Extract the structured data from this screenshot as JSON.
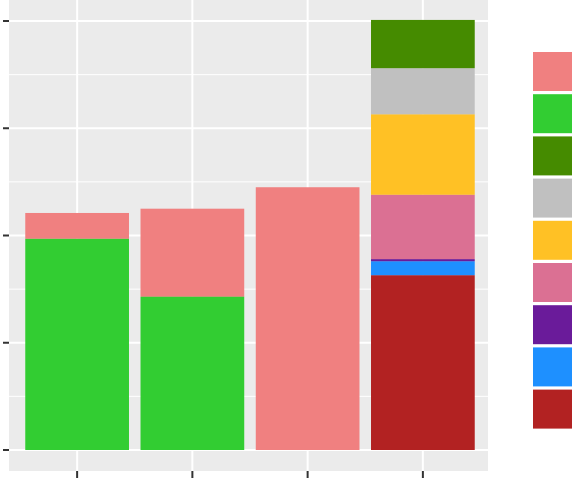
{
  "chart_data": {
    "type": "bar",
    "stacked": true,
    "title": "",
    "xlabel": "",
    "ylabel": "",
    "categories": [
      "",
      "",
      "",
      ""
    ],
    "ylim": [
      0,
      4
    ],
    "grid": true,
    "legend_position": "right",
    "series": [
      {
        "color": "#b22222",
        "values": [
          0,
          0,
          0,
          1.63
        ]
      },
      {
        "color": "#1e90ff",
        "values": [
          0,
          0,
          0,
          0.13
        ]
      },
      {
        "color": "#6a1b9a",
        "values": [
          0,
          0,
          0,
          0.02
        ]
      },
      {
        "color": "#db7093",
        "values": [
          0,
          0,
          0,
          0.6
        ]
      },
      {
        "color": "#ffc125",
        "values": [
          0,
          0,
          0,
          0.75
        ]
      },
      {
        "color": "#c0c0c0",
        "values": [
          0,
          0,
          0,
          0.43
        ]
      },
      {
        "color": "#458b00",
        "values": [
          0,
          0,
          0,
          0.45
        ]
      },
      {
        "color": "#32cd32",
        "values": [
          1.97,
          1.43,
          0,
          0
        ]
      },
      {
        "color": "#f08080",
        "values": [
          0.24,
          0.82,
          2.45,
          0
        ]
      }
    ]
  }
}
